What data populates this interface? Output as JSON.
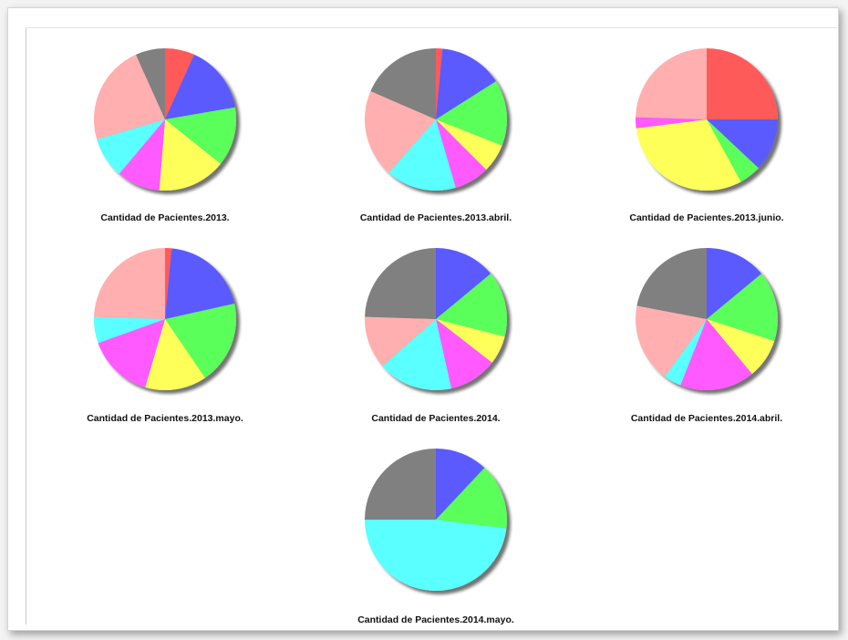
{
  "colors": {
    "red": "#ff5a5a",
    "blue": "#5a5aff",
    "green": "#5aff5a",
    "yellow": "#ffff5a",
    "magenta": "#ff5aff",
    "cyan": "#5affff",
    "pink": "#ffafaf",
    "gray": "#808080"
  },
  "chart_data": [
    {
      "type": "pie",
      "title": "Cantidad de Pacientes.2013.",
      "slices": [
        {
          "color": "red",
          "value": 6.5
        },
        {
          "color": "blue",
          "value": 15
        },
        {
          "color": "green",
          "value": 13
        },
        {
          "color": "yellow",
          "value": 15
        },
        {
          "color": "magenta",
          "value": 9.5
        },
        {
          "color": "cyan",
          "value": 9
        },
        {
          "color": "pink",
          "value": 22
        },
        {
          "color": "gray",
          "value": 6.5
        }
      ]
    },
    {
      "type": "pie",
      "title": "Cantidad de Pacientes.2013.abril.",
      "slices": [
        {
          "color": "red",
          "value": 1.5
        },
        {
          "color": "blue",
          "value": 14.5
        },
        {
          "color": "green",
          "value": 15
        },
        {
          "color": "yellow",
          "value": 6.5
        },
        {
          "color": "magenta",
          "value": 8
        },
        {
          "color": "cyan",
          "value": 16
        },
        {
          "color": "pink",
          "value": 20
        },
        {
          "color": "gray",
          "value": 18.5
        }
      ]
    },
    {
      "type": "pie",
      "title": "Cantidad de Pacientes.2013.junio.",
      "slices": [
        {
          "color": "red",
          "value": 25
        },
        {
          "color": "blue",
          "value": 12
        },
        {
          "color": "green",
          "value": 5
        },
        {
          "color": "yellow",
          "value": 31
        },
        {
          "color": "magenta",
          "value": 2.5
        },
        {
          "color": "pink",
          "value": 24.5
        }
      ]
    },
    {
      "type": "pie",
      "title": "Cantidad de Pacientes.2013.mayo.",
      "slices": [
        {
          "color": "red",
          "value": 1.5
        },
        {
          "color": "blue",
          "value": 20
        },
        {
          "color": "green",
          "value": 19
        },
        {
          "color": "yellow",
          "value": 14
        },
        {
          "color": "magenta",
          "value": 15
        },
        {
          "color": "cyan",
          "value": 6
        },
        {
          "color": "pink",
          "value": 24.5
        }
      ]
    },
    {
      "type": "pie",
      "title": "Cantidad de Pacientes.2014.",
      "slices": [
        {
          "color": "blue",
          "value": 14
        },
        {
          "color": "green",
          "value": 15
        },
        {
          "color": "yellow",
          "value": 6.5
        },
        {
          "color": "magenta",
          "value": 11
        },
        {
          "color": "cyan",
          "value": 17
        },
        {
          "color": "pink",
          "value": 12
        },
        {
          "color": "gray",
          "value": 24.5
        }
      ]
    },
    {
      "type": "pie",
      "title": "Cantidad de Pacientes.2014.abril.",
      "slices": [
        {
          "color": "blue",
          "value": 14
        },
        {
          "color": "green",
          "value": 16
        },
        {
          "color": "yellow",
          "value": 9
        },
        {
          "color": "magenta",
          "value": 17
        },
        {
          "color": "cyan",
          "value": 4
        },
        {
          "color": "pink",
          "value": 18
        },
        {
          "color": "gray",
          "value": 22
        }
      ]
    },
    {
      "type": "pie",
      "title": "Cantidad de Pacientes.2014.mayo.",
      "slices": [
        {
          "color": "blue",
          "value": 12
        },
        {
          "color": "green",
          "value": 15
        },
        {
          "color": "cyan",
          "value": 48
        },
        {
          "color": "gray",
          "value": 25
        }
      ]
    }
  ]
}
